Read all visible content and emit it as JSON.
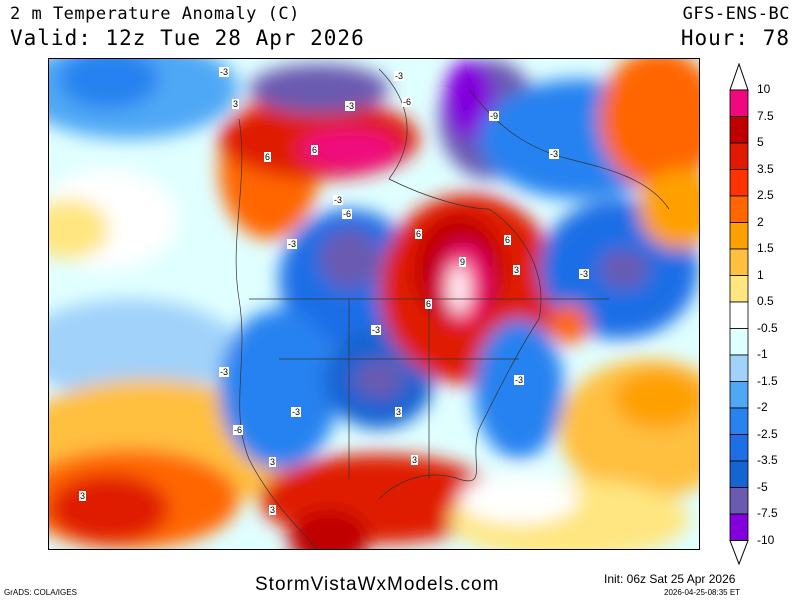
{
  "header": {
    "title": "2 m Temperature Anomaly (C)",
    "valid": "Valid: 12z Tue 28 Apr 2026",
    "model": "GFS-ENS-BC",
    "hour": "Hour: 78"
  },
  "colorbar": {
    "labels": [
      "10",
      "7.5",
      "5",
      "3.5",
      "2.5",
      "2",
      "1.5",
      "1",
      "0.5",
      "-0.5",
      "-1",
      "-1.5",
      "-2",
      "-2.5",
      "-3.5",
      "-5",
      "-7.5",
      "-10"
    ],
    "colors": [
      "#f0087e",
      "#c00000",
      "#e01a00",
      "#ff3300",
      "#ff6600",
      "#ffa000",
      "#ffc040",
      "#ffe680",
      "#ffffff",
      "#e0ffff",
      "#a0d2fa",
      "#50a8f5",
      "#2882f0",
      "#1e6ee6",
      "#1464d2",
      "#6a5ab0",
      "#8200dc"
    ]
  },
  "contour_labels": [
    "-3",
    "-3",
    "-3",
    "-6",
    "3",
    "6",
    "6",
    "-3",
    "-6",
    "-3",
    "6",
    "6",
    "9",
    "6",
    "3",
    "-3",
    "-3",
    "-3",
    "-3",
    "-6",
    "3",
    "3",
    "3",
    "3",
    "-9",
    "-3",
    "-3",
    "3"
  ],
  "footer": {
    "grads": "GrADS: COLA/IGES",
    "site": "StormVistaWxModels.com",
    "init": "Init: 06z Sat 25 Apr 2026",
    "stamp": "2026-04-25-08:35 ET"
  }
}
